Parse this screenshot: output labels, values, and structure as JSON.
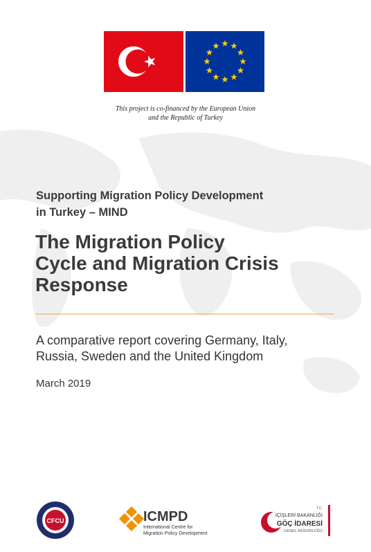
{
  "funding_note": {
    "lines": [
      "This project is co-financed by the European Union",
      "and the Republic of Turkey"
    ]
  },
  "project": {
    "lines": [
      "Supporting Migration Policy Development",
      "in Turkey – MIND"
    ]
  },
  "title": {
    "lines": [
      "The Migration Policy",
      "Cycle and Migration Crisis",
      "Response"
    ]
  },
  "subtitle": {
    "lines": [
      "A comparative report covering Germany, Italy,",
      "Russia, Sweden and the United Kingdom"
    ]
  },
  "date": "March 2019",
  "logos": {
    "cfcu": "CFCU",
    "icmpd": {
      "name": "ICMPD",
      "lines": [
        "International Centre for",
        "Migration Policy Development"
      ]
    },
    "goc": {
      "lines": [
        "T.C.",
        "İÇİŞLERİ BAKANLIĞI",
        "GÖÇ İDARESİ",
        "GENEL MÜDÜRLÜĞÜ"
      ]
    }
  }
}
